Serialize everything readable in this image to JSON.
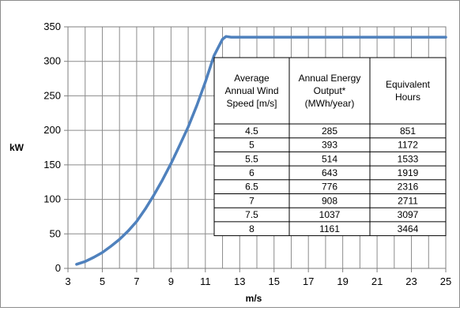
{
  "chart_data": {
    "type": "line",
    "title": "",
    "xlabel": "m/s",
    "ylabel": "kW",
    "xlim": [
      3,
      25
    ],
    "ylim": [
      0,
      350
    ],
    "x_ticks": [
      "3",
      "5",
      "7",
      "9",
      "11",
      "13",
      "15",
      "17",
      "19",
      "21",
      "23",
      "25"
    ],
    "y_ticks": [
      "0",
      "50",
      "100",
      "150",
      "200",
      "250",
      "300",
      "350"
    ],
    "grid": true,
    "series": [
      {
        "color": "#4f81bd",
        "x": [
          3.5,
          4,
          4.5,
          5,
          5.5,
          6,
          6.5,
          7,
          7.5,
          8,
          8.5,
          9,
          9.5,
          10,
          10.5,
          11,
          11.5,
          12,
          12.2,
          12.5,
          13,
          14,
          16,
          18,
          20,
          22,
          24,
          25
        ],
        "values": [
          6,
          10,
          16,
          23,
          32,
          42,
          54,
          68,
          86,
          106,
          128,
          152,
          178,
          205,
          236,
          270,
          308,
          332,
          336,
          335,
          335,
          335,
          335,
          335,
          335,
          335,
          335,
          335
        ]
      }
    ]
  },
  "table": {
    "headers": [
      [
        "Average",
        "Annual Wind",
        "Speed  [m/s]"
      ],
      [
        "Annual Energy",
        "Output*",
        "(MWh/year)"
      ],
      [
        "Equivalent",
        "Hours"
      ]
    ],
    "rows": [
      [
        "4.5",
        "285",
        "851"
      ],
      [
        "5",
        "393",
        "1172"
      ],
      [
        "5.5",
        "514",
        "1533"
      ],
      [
        "6",
        "643",
        "1919"
      ],
      [
        "6.5",
        "776",
        "2316"
      ],
      [
        "7",
        "908",
        "2711"
      ],
      [
        "7.5",
        "1037",
        "3097"
      ],
      [
        "8",
        "1161",
        "3464"
      ]
    ]
  }
}
